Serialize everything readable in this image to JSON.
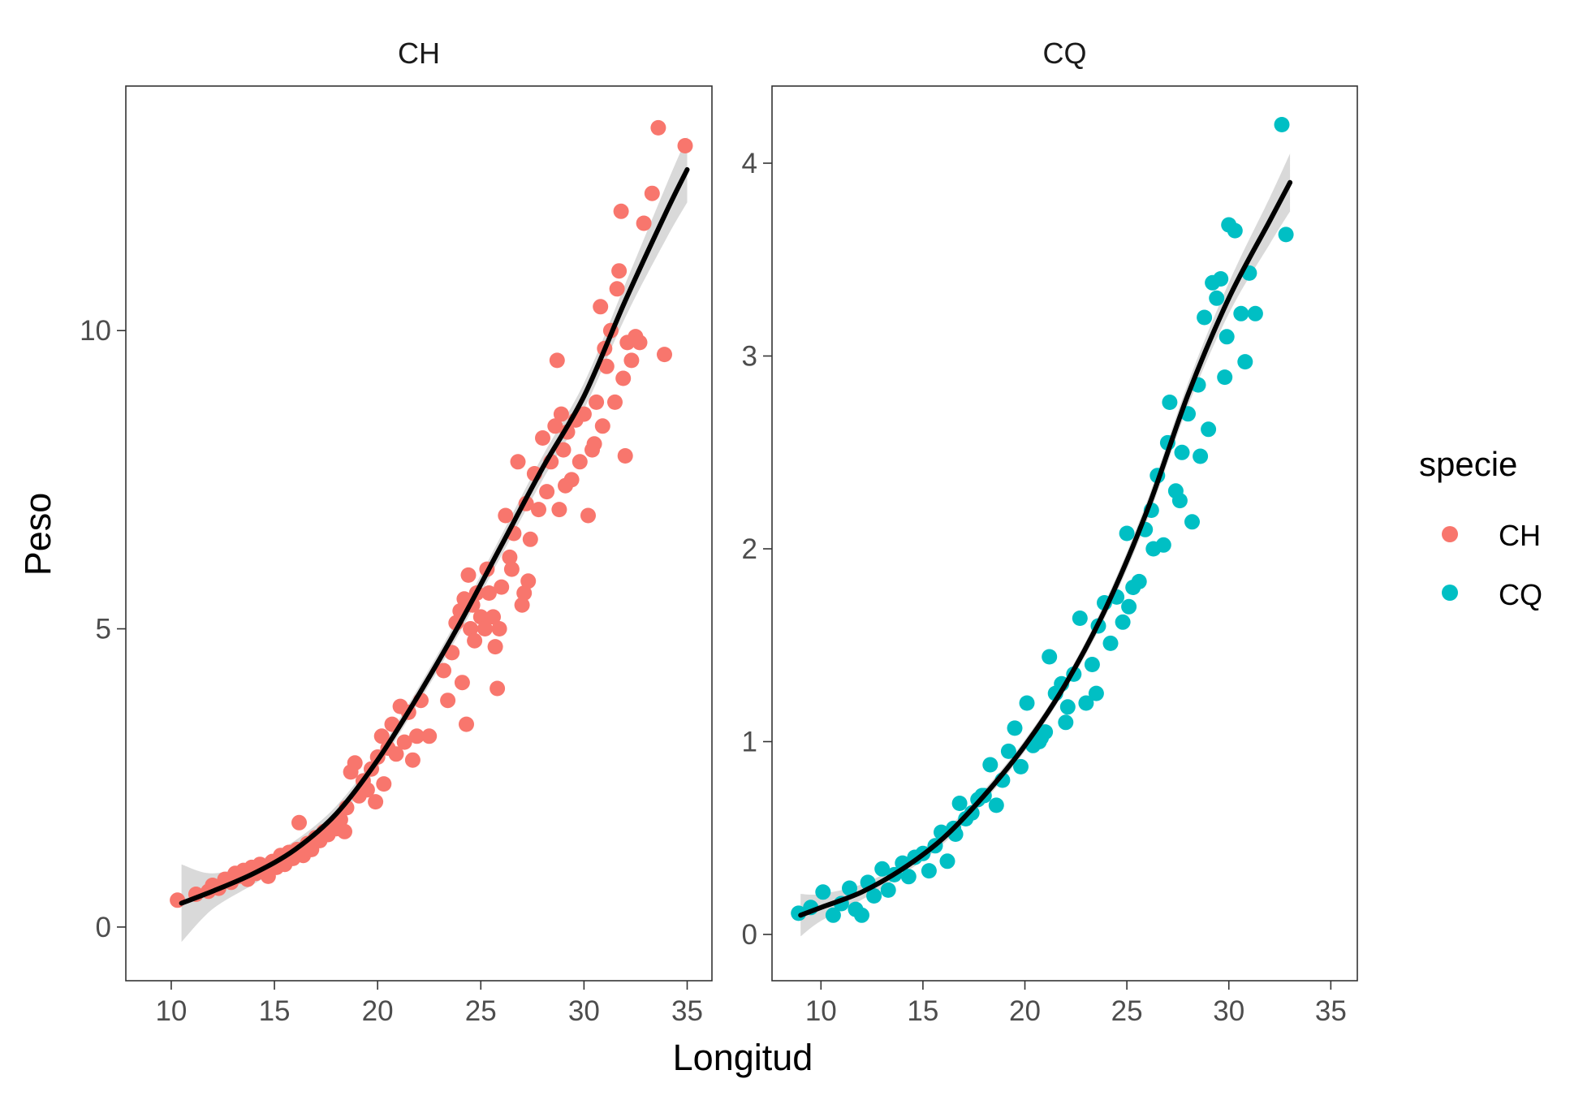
{
  "figure": {
    "xlabel": "Longitud",
    "ylabel": "Peso",
    "legend_title": "specie",
    "legend_position": "right",
    "grid": false,
    "theme": "bw",
    "fit_color": "#000000",
    "ribbon_color": "#cccccc"
  },
  "legend": [
    {
      "label": "CH",
      "color": "#F8766D"
    },
    {
      "label": "CQ",
      "color": "#00BFC4"
    }
  ],
  "chart_data": [
    {
      "type": "scatter",
      "title": "CH",
      "color": "#F8766D",
      "xlim": [
        7.8,
        36.2
      ],
      "ylim": [
        -0.9,
        14.1
      ],
      "xticks": [
        10,
        15,
        20,
        25,
        30,
        35
      ],
      "yticks": [
        0,
        5,
        10
      ],
      "xticklabels": [
        "10",
        "15",
        "20",
        "25",
        "30",
        "35"
      ],
      "yticklabels": [
        "0",
        "5",
        "10"
      ],
      "fit": {
        "type": "smooth",
        "x": [
          10.5,
          12,
          14,
          16,
          18,
          20,
          22,
          24,
          26,
          28,
          30,
          32,
          34,
          35
        ],
        "y": [
          0.4,
          0.6,
          0.9,
          1.3,
          1.9,
          2.8,
          3.9,
          5.1,
          6.4,
          7.7,
          8.9,
          10.5,
          12,
          12.7
        ],
        "ci_halfwidth": [
          0.65,
          0.3,
          0.18,
          0.15,
          0.13,
          0.12,
          0.13,
          0.15,
          0.17,
          0.2,
          0.22,
          0.28,
          0.45,
          0.55
        ]
      },
      "points": [
        [
          10.3,
          0.45
        ],
        [
          11.2,
          0.55
        ],
        [
          11.8,
          0.6
        ],
        [
          12.0,
          0.7
        ],
        [
          12.3,
          0.65
        ],
        [
          12.6,
          0.8
        ],
        [
          12.9,
          0.75
        ],
        [
          13.1,
          0.9
        ],
        [
          13.3,
          0.85
        ],
        [
          13.5,
          0.95
        ],
        [
          13.7,
          0.8
        ],
        [
          13.9,
          1.0
        ],
        [
          14.1,
          0.9
        ],
        [
          14.3,
          1.05
        ],
        [
          14.5,
          0.95
        ],
        [
          14.7,
          0.85
        ],
        [
          14.9,
          1.1
        ],
        [
          15.1,
          1.0
        ],
        [
          15.3,
          1.2
        ],
        [
          15.5,
          1.05
        ],
        [
          15.7,
          1.25
        ],
        [
          15.9,
          1.15
        ],
        [
          16.1,
          1.3
        ],
        [
          16.2,
          1.75
        ],
        [
          16.4,
          1.2
        ],
        [
          16.6,
          1.4
        ],
        [
          16.8,
          1.3
        ],
        [
          17.0,
          1.5
        ],
        [
          17.2,
          1.45
        ],
        [
          17.4,
          1.6
        ],
        [
          17.6,
          1.55
        ],
        [
          17.8,
          1.7
        ],
        [
          18.0,
          1.65
        ],
        [
          18.2,
          1.8
        ],
        [
          18.4,
          1.6
        ],
        [
          18.5,
          2.0
        ],
        [
          18.7,
          2.6
        ],
        [
          18.9,
          2.75
        ],
        [
          19.1,
          2.2
        ],
        [
          19.3,
          2.45
        ],
        [
          19.5,
          2.3
        ],
        [
          19.7,
          2.65
        ],
        [
          19.9,
          2.1
        ],
        [
          20.0,
          2.85
        ],
        [
          20.2,
          3.2
        ],
        [
          20.3,
          2.4
        ],
        [
          20.5,
          3.0
        ],
        [
          20.7,
          3.4
        ],
        [
          20.9,
          2.9
        ],
        [
          21.1,
          3.7
        ],
        [
          21.3,
          3.1
        ],
        [
          21.5,
          3.6
        ],
        [
          21.7,
          2.8
        ],
        [
          21.9,
          3.2
        ],
        [
          22.1,
          3.8
        ],
        [
          23.2,
          4.3
        ],
        [
          23.4,
          3.8
        ],
        [
          23.6,
          4.6
        ],
        [
          23.8,
          5.1
        ],
        [
          24.0,
          5.3
        ],
        [
          24.1,
          4.1
        ],
        [
          24.2,
          5.5
        ],
        [
          24.3,
          3.4
        ],
        [
          24.4,
          5.9
        ],
        [
          24.5,
          5.0
        ],
        [
          24.6,
          5.4
        ],
        [
          24.7,
          4.8
        ],
        [
          24.8,
          5.6
        ],
        [
          25.0,
          5.2
        ],
        [
          25.2,
          5.0
        ],
        [
          25.4,
          5.6
        ],
        [
          25.6,
          5.2
        ],
        [
          25.7,
          4.7
        ],
        [
          25.8,
          4.0
        ],
        [
          25.9,
          5.0
        ],
        [
          26.0,
          5.7
        ],
        [
          26.2,
          6.9
        ],
        [
          26.4,
          6.2
        ],
        [
          26.6,
          6.6
        ],
        [
          26.8,
          7.8
        ],
        [
          27.0,
          5.4
        ],
        [
          27.1,
          5.6
        ],
        [
          27.2,
          7.1
        ],
        [
          27.4,
          6.5
        ],
        [
          27.6,
          7.6
        ],
        [
          27.8,
          7.0
        ],
        [
          28.0,
          8.2
        ],
        [
          28.2,
          7.3
        ],
        [
          28.4,
          7.8
        ],
        [
          28.6,
          8.4
        ],
        [
          28.7,
          9.5
        ],
        [
          28.8,
          7.0
        ],
        [
          29.0,
          8.0
        ],
        [
          29.2,
          8.3
        ],
        [
          29.4,
          7.5
        ],
        [
          29.6,
          8.5
        ],
        [
          29.8,
          7.8
        ],
        [
          30.0,
          8.6
        ],
        [
          30.2,
          6.9
        ],
        [
          30.4,
          8.0
        ],
        [
          30.6,
          8.8
        ],
        [
          30.8,
          10.4
        ],
        [
          31.0,
          9.7
        ],
        [
          31.1,
          9.4
        ],
        [
          31.3,
          10.0
        ],
        [
          31.5,
          8.8
        ],
        [
          31.6,
          10.7
        ],
        [
          31.7,
          11.0
        ],
        [
          31.9,
          9.2
        ],
        [
          32.1,
          9.8
        ],
        [
          32.3,
          9.5
        ],
        [
          32.5,
          9.9
        ],
        [
          32.7,
          9.8
        ],
        [
          32.9,
          11.8
        ],
        [
          33.3,
          12.3
        ],
        [
          33.6,
          13.4
        ],
        [
          33.9,
          9.6
        ],
        [
          34.9,
          13.1
        ],
        [
          30.5,
          8.1
        ],
        [
          29.1,
          7.4
        ],
        [
          31.8,
          12.0
        ],
        [
          30.9,
          8.4
        ],
        [
          32.0,
          7.9
        ],
        [
          28.9,
          8.6
        ],
        [
          27.3,
          5.8
        ],
        [
          26.5,
          6.0
        ],
        [
          25.3,
          6.0
        ],
        [
          22.5,
          3.2
        ]
      ]
    },
    {
      "type": "scatter",
      "title": "CQ",
      "color": "#00BFC4",
      "xlim": [
        7.6,
        36.3
      ],
      "ylim": [
        -0.24,
        4.4
      ],
      "xticks": [
        10,
        15,
        20,
        25,
        30,
        35
      ],
      "yticks": [
        0,
        1,
        2,
        3,
        4
      ],
      "xticklabels": [
        "10",
        "15",
        "20",
        "25",
        "30",
        "35"
      ],
      "yticklabels": [
        "0",
        "1",
        "2",
        "3",
        "4"
      ],
      "fit": {
        "type": "smooth",
        "x": [
          9,
          10,
          12,
          14,
          16,
          18,
          20,
          22,
          24,
          26,
          28,
          30,
          32,
          33
        ],
        "y": [
          0.1,
          0.14,
          0.22,
          0.34,
          0.5,
          0.72,
          0.98,
          1.3,
          1.7,
          2.2,
          2.8,
          3.3,
          3.7,
          3.9
        ],
        "ci_halfwidth": [
          0.11,
          0.07,
          0.04,
          0.03,
          0.03,
          0.03,
          0.03,
          0.03,
          0.04,
          0.05,
          0.06,
          0.08,
          0.12,
          0.15
        ]
      },
      "points": [
        [
          8.9,
          0.11
        ],
        [
          9.5,
          0.14
        ],
        [
          10.1,
          0.22
        ],
        [
          10.6,
          0.1
        ],
        [
          11.0,
          0.16
        ],
        [
          11.4,
          0.24
        ],
        [
          11.7,
          0.13
        ],
        [
          12.0,
          0.1
        ],
        [
          12.3,
          0.27
        ],
        [
          12.6,
          0.2
        ],
        [
          13.0,
          0.34
        ],
        [
          13.3,
          0.23
        ],
        [
          13.6,
          0.31
        ],
        [
          14.0,
          0.37
        ],
        [
          14.3,
          0.3
        ],
        [
          14.6,
          0.4
        ],
        [
          15.0,
          0.42
        ],
        [
          15.3,
          0.33
        ],
        [
          15.6,
          0.46
        ],
        [
          15.9,
          0.53
        ],
        [
          16.2,
          0.38
        ],
        [
          16.5,
          0.55
        ],
        [
          16.8,
          0.68
        ],
        [
          17.1,
          0.6
        ],
        [
          17.4,
          0.63
        ],
        [
          17.7,
          0.7
        ],
        [
          18.0,
          0.72
        ],
        [
          18.3,
          0.88
        ],
        [
          18.6,
          0.67
        ],
        [
          18.9,
          0.8
        ],
        [
          19.2,
          0.95
        ],
        [
          19.5,
          1.07
        ],
        [
          19.8,
          0.87
        ],
        [
          20.1,
          1.2
        ],
        [
          20.4,
          0.98
        ],
        [
          20.7,
          1.0
        ],
        [
          21.0,
          1.05
        ],
        [
          21.2,
          1.44
        ],
        [
          21.5,
          1.25
        ],
        [
          21.8,
          1.3
        ],
        [
          22.1,
          1.18
        ],
        [
          22.4,
          1.35
        ],
        [
          22.7,
          1.64
        ],
        [
          23.0,
          1.2
        ],
        [
          23.3,
          1.4
        ],
        [
          23.6,
          1.6
        ],
        [
          23.9,
          1.72
        ],
        [
          24.2,
          1.51
        ],
        [
          24.5,
          1.75
        ],
        [
          24.8,
          1.62
        ],
        [
          25.0,
          2.08
        ],
        [
          25.3,
          1.8
        ],
        [
          25.6,
          1.83
        ],
        [
          25.9,
          2.1
        ],
        [
          26.2,
          2.2
        ],
        [
          26.5,
          2.38
        ],
        [
          26.8,
          2.02
        ],
        [
          27.0,
          2.55
        ],
        [
          27.1,
          2.76
        ],
        [
          27.4,
          2.3
        ],
        [
          27.7,
          2.5
        ],
        [
          28.0,
          2.7
        ],
        [
          28.2,
          2.14
        ],
        [
          28.5,
          2.85
        ],
        [
          28.8,
          3.2
        ],
        [
          29.0,
          2.62
        ],
        [
          29.2,
          3.38
        ],
        [
          29.4,
          3.3
        ],
        [
          29.6,
          3.4
        ],
        [
          29.8,
          2.89
        ],
        [
          30.0,
          3.68
        ],
        [
          30.3,
          3.65
        ],
        [
          30.6,
          3.22
        ],
        [
          30.8,
          2.97
        ],
        [
          31.0,
          3.43
        ],
        [
          31.3,
          3.22
        ],
        [
          32.6,
          4.2
        ],
        [
          32.8,
          3.63
        ],
        [
          27.6,
          2.25
        ],
        [
          28.6,
          2.48
        ],
        [
          29.9,
          3.1
        ],
        [
          26.3,
          2.0
        ],
        [
          25.1,
          1.7
        ],
        [
          23.5,
          1.25
        ],
        [
          22.0,
          1.1
        ],
        [
          20.8,
          1.02
        ],
        [
          17.9,
          0.72
        ],
        [
          16.6,
          0.52
        ]
      ]
    }
  ]
}
